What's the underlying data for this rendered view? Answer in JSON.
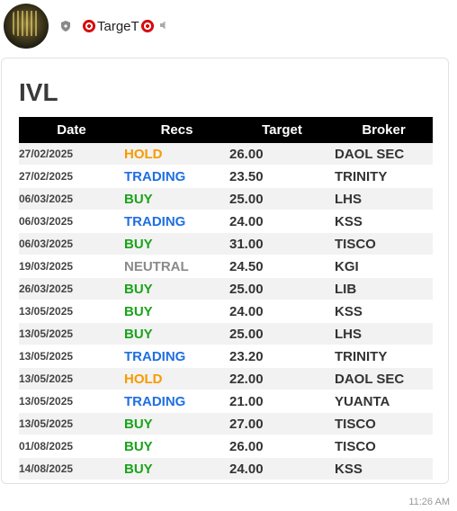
{
  "header": {
    "sender_name": "TargeT",
    "icons": [
      "shield-icon",
      "target-emoji",
      "mute-icon"
    ]
  },
  "card": {
    "title": "IVL",
    "columns": [
      "Date",
      "Recs",
      "Target",
      "Broker"
    ],
    "rows": [
      {
        "date": "27/02/2025",
        "rec": "HOLD",
        "target": "26.00",
        "broker": "DAOL SEC"
      },
      {
        "date": "27/02/2025",
        "rec": "TRADING",
        "target": "23.50",
        "broker": "TRINITY"
      },
      {
        "date": "06/03/2025",
        "rec": "BUY",
        "target": "25.00",
        "broker": "LHS"
      },
      {
        "date": "06/03/2025",
        "rec": "TRADING",
        "target": "24.00",
        "broker": "KSS"
      },
      {
        "date": "06/03/2025",
        "rec": "BUY",
        "target": "31.00",
        "broker": "TISCO"
      },
      {
        "date": "19/03/2025",
        "rec": "NEUTRAL",
        "target": "24.50",
        "broker": "KGI"
      },
      {
        "date": "26/03/2025",
        "rec": "BUY",
        "target": "25.00",
        "broker": "LIB"
      },
      {
        "date": "13/05/2025",
        "rec": "BUY",
        "target": "24.00",
        "broker": "KSS"
      },
      {
        "date": "13/05/2025",
        "rec": "BUY",
        "target": "25.00",
        "broker": "LHS"
      },
      {
        "date": "13/05/2025",
        "rec": "TRADING",
        "target": "23.20",
        "broker": "TRINITY"
      },
      {
        "date": "13/05/2025",
        "rec": "HOLD",
        "target": "22.00",
        "broker": "DAOL SEC"
      },
      {
        "date": "13/05/2025",
        "rec": "TRADING",
        "target": "21.00",
        "broker": "YUANTA"
      },
      {
        "date": "13/05/2025",
        "rec": "BUY",
        "target": "27.00",
        "broker": "TISCO"
      },
      {
        "date": "01/08/2025",
        "rec": "BUY",
        "target": "26.00",
        "broker": "TISCO"
      },
      {
        "date": "14/08/2025",
        "rec": "BUY",
        "target": "24.00",
        "broker": "KSS"
      }
    ],
    "rec_colors": {
      "HOLD": "#f59b00",
      "TRADING": "#1f6fe0",
      "BUY": "#1aa31a",
      "NEUTRAL": "#8a8a8a"
    }
  },
  "timestamp": "11:26 AM"
}
